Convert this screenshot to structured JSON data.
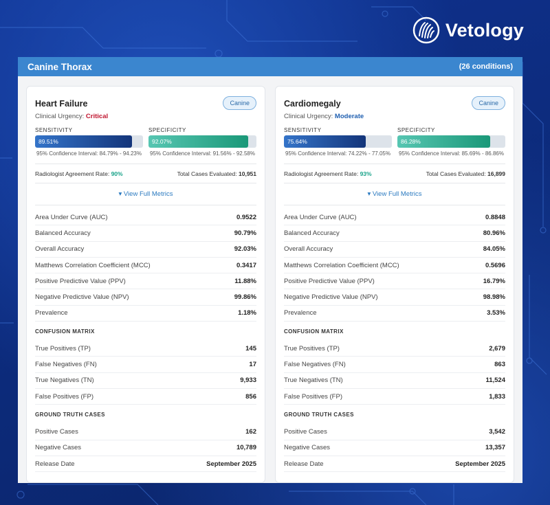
{
  "brand": {
    "name": "Vetology"
  },
  "panel": {
    "title": "Canine Thorax",
    "count": "(26 conditions)"
  },
  "labels": {
    "sensitivity": "SENSITIVITY",
    "specificity": "SPECIFICITY",
    "clinical_urgency": "Clinical Urgency:",
    "agreement": "Radiologist Agreement Rate:",
    "total_cases": "Total Cases Evaluated:",
    "view_full": "▾ View Full Metrics",
    "confusion_matrix": "CONFUSION MATRIX",
    "ground_truth": "GROUND TRUTH CASES"
  },
  "cards": [
    {
      "name": "Heart Failure",
      "species": "Canine",
      "urgency": "Critical",
      "sensitivity": {
        "value": "89.51%",
        "fraction": 0.8951,
        "ci": "95% Confidence Interval: 84.79% - 94.23%"
      },
      "specificity": {
        "value": "92.07%",
        "fraction": 0.9207,
        "ci": "95% Confidence Interval: 91.56% - 92.58%"
      },
      "agreement": "90%",
      "total_cases": "10,951",
      "metrics": [
        {
          "label": "Area Under Curve (AUC)",
          "value": "0.9522"
        },
        {
          "label": "Balanced Accuracy",
          "value": "90.79%"
        },
        {
          "label": "Overall Accuracy",
          "value": "92.03%"
        },
        {
          "label": "Matthews Correlation Coefficient (MCC)",
          "value": "0.3417"
        },
        {
          "label": "Positive Predictive Value (PPV)",
          "value": "11.88%"
        },
        {
          "label": "Negative Predictive Value (NPV)",
          "value": "99.86%"
        },
        {
          "label": "Prevalence",
          "value": "1.18%"
        }
      ],
      "confusion": [
        {
          "label": "True Positives (TP)",
          "value": "145"
        },
        {
          "label": "False Negatives (FN)",
          "value": "17"
        },
        {
          "label": "True Negatives (TN)",
          "value": "9,933"
        },
        {
          "label": "False Positives (FP)",
          "value": "856"
        }
      ],
      "ground": [
        {
          "label": "Positive Cases",
          "value": "162"
        },
        {
          "label": "Negative Cases",
          "value": "10,789"
        },
        {
          "label": "Release Date",
          "value": "September 2025"
        }
      ]
    },
    {
      "name": "Cardiomegaly",
      "species": "Canine",
      "urgency": "Moderate",
      "sensitivity": {
        "value": "75.64%",
        "fraction": 0.7564,
        "ci": "95% Confidence Interval: 74.22% - 77.05%"
      },
      "specificity": {
        "value": "86.28%",
        "fraction": 0.8628,
        "ci": "95% Confidence Interval: 85.69% - 86.86%"
      },
      "agreement": "93%",
      "total_cases": "16,899",
      "metrics": [
        {
          "label": "Area Under Curve (AUC)",
          "value": "0.8848"
        },
        {
          "label": "Balanced Accuracy",
          "value": "80.96%"
        },
        {
          "label": "Overall Accuracy",
          "value": "84.05%"
        },
        {
          "label": "Matthews Correlation Coefficient (MCC)",
          "value": "0.5696"
        },
        {
          "label": "Positive Predictive Value (PPV)",
          "value": "16.79%"
        },
        {
          "label": "Negative Predictive Value (NPV)",
          "value": "98.98%"
        },
        {
          "label": "Prevalence",
          "value": "3.53%"
        }
      ],
      "confusion": [
        {
          "label": "True Positives (TP)",
          "value": "2,679"
        },
        {
          "label": "False Negatives (FN)",
          "value": "863"
        },
        {
          "label": "True Negatives (TN)",
          "value": "11,524"
        },
        {
          "label": "False Positives (FP)",
          "value": "1,833"
        }
      ],
      "ground": [
        {
          "label": "Positive Cases",
          "value": "3,542"
        },
        {
          "label": "Negative Cases",
          "value": "13,357"
        },
        {
          "label": "Release Date",
          "value": "September 2025"
        }
      ]
    }
  ]
}
